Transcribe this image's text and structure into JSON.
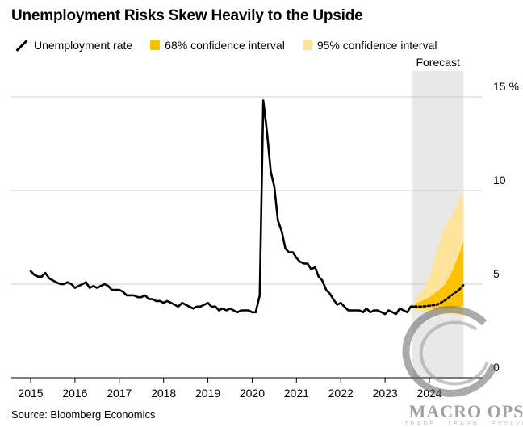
{
  "chart_data": {
    "type": "line",
    "title": "Unemployment Risks Skew Heavily to the Upside",
    "source": "Source: Bloomberg Economics",
    "xlabel": "",
    "ylabel": "",
    "xlim": [
      2014.95,
      2025.0
    ],
    "ylim": [
      0,
      15
    ],
    "grid": true,
    "y_ticks": [
      {
        "value": 0,
        "label": "0"
      },
      {
        "value": 5,
        "label": "5"
      },
      {
        "value": 10,
        "label": "10"
      },
      {
        "value": 15,
        "label": "15 %"
      }
    ],
    "x_ticks": [
      {
        "value": 2015,
        "label": "2015"
      },
      {
        "value": 2016,
        "label": "2016"
      },
      {
        "value": 2017,
        "label": "2017"
      },
      {
        "value": 2018,
        "label": "2018"
      },
      {
        "value": 2019,
        "label": "2019"
      },
      {
        "value": 2020,
        "label": "2020"
      },
      {
        "value": 2021,
        "label": "2021"
      },
      {
        "value": 2022,
        "label": "2022"
      },
      {
        "value": 2023,
        "label": "2023"
      },
      {
        "value": 2024,
        "label": "2024"
      }
    ],
    "forecast_region": {
      "label": "Forecast",
      "start": 2023.62,
      "end": 2024.77,
      "color": "#e8e8e8"
    },
    "colors": {
      "line": "#000000",
      "ci68": "#fcc200",
      "ci95": "#fde49a",
      "grid": "#cccccc",
      "axis": "#000000"
    },
    "legend": [
      {
        "name": "Unemployment rate",
        "kind": "line"
      },
      {
        "name": "68% confidence interval",
        "kind": "ci68"
      },
      {
        "name": "95% confidence interval",
        "kind": "ci95"
      }
    ],
    "series": [
      {
        "name": "Unemployment rate",
        "x": [
          2015.0,
          2015.08,
          2015.17,
          2015.25,
          2015.33,
          2015.42,
          2015.5,
          2015.58,
          2015.67,
          2015.75,
          2015.83,
          2015.92,
          2016.0,
          2016.08,
          2016.17,
          2016.25,
          2016.33,
          2016.42,
          2016.5,
          2016.58,
          2016.67,
          2016.75,
          2016.83,
          2016.92,
          2017.0,
          2017.08,
          2017.17,
          2017.25,
          2017.33,
          2017.42,
          2017.5,
          2017.58,
          2017.67,
          2017.75,
          2017.83,
          2017.92,
          2018.0,
          2018.08,
          2018.17,
          2018.25,
          2018.33,
          2018.42,
          2018.5,
          2018.58,
          2018.67,
          2018.75,
          2018.83,
          2018.92,
          2019.0,
          2019.08,
          2019.17,
          2019.25,
          2019.33,
          2019.42,
          2019.5,
          2019.58,
          2019.67,
          2019.75,
          2019.83,
          2019.92,
          2020.0,
          2020.08,
          2020.17,
          2020.25,
          2020.33,
          2020.42,
          2020.5,
          2020.58,
          2020.67,
          2020.75,
          2020.83,
          2020.92,
          2021.0,
          2021.08,
          2021.17,
          2021.25,
          2021.33,
          2021.42,
          2021.5,
          2021.58,
          2021.67,
          2021.75,
          2021.83,
          2021.92,
          2022.0,
          2022.08,
          2022.17,
          2022.25,
          2022.33,
          2022.42,
          2022.5,
          2022.58,
          2022.67,
          2022.75,
          2022.83,
          2022.92,
          2023.0,
          2023.08,
          2023.17,
          2023.25,
          2023.33,
          2023.42,
          2023.5,
          2023.58,
          2023.67
        ],
        "values": [
          5.7,
          5.5,
          5.4,
          5.4,
          5.6,
          5.3,
          5.2,
          5.1,
          5.0,
          5.0,
          5.1,
          5.0,
          4.8,
          4.9,
          5.0,
          5.1,
          4.8,
          4.9,
          4.8,
          4.9,
          5.0,
          4.9,
          4.7,
          4.7,
          4.7,
          4.6,
          4.4,
          4.4,
          4.4,
          4.3,
          4.3,
          4.4,
          4.2,
          4.2,
          4.1,
          4.1,
          4.0,
          4.1,
          4.0,
          3.9,
          3.8,
          4.0,
          3.9,
          3.8,
          3.7,
          3.8,
          3.8,
          3.9,
          4.0,
          3.8,
          3.8,
          3.6,
          3.7,
          3.6,
          3.7,
          3.6,
          3.5,
          3.6,
          3.6,
          3.6,
          3.5,
          3.5,
          4.4,
          14.8,
          13.2,
          11.0,
          10.2,
          8.4,
          7.8,
          6.9,
          6.7,
          6.7,
          6.4,
          6.2,
          6.1,
          6.1,
          5.8,
          5.9,
          5.4,
          5.2,
          4.7,
          4.5,
          4.2,
          3.9,
          4.0,
          3.8,
          3.6,
          3.6,
          3.6,
          3.6,
          3.5,
          3.7,
          3.5,
          3.6,
          3.6,
          3.5,
          3.4,
          3.6,
          3.5,
          3.4,
          3.7,
          3.6,
          3.5,
          3.8,
          3.8
        ]
      },
      {
        "name": "Forecast median",
        "x": [
          2023.67,
          2023.83,
          2024.0,
          2024.17,
          2024.33,
          2024.5,
          2024.67,
          2024.77
        ],
        "values": [
          3.8,
          3.8,
          3.85,
          3.9,
          4.1,
          4.4,
          4.7,
          4.95
        ]
      }
    ],
    "bands": [
      {
        "name": "95% confidence interval",
        "x": [
          2023.67,
          2023.83,
          2024.0,
          2024.17,
          2024.33,
          2024.5,
          2024.67,
          2024.77
        ],
        "lower": [
          3.6,
          3.55,
          3.5,
          3.45,
          3.4,
          3.4,
          3.35,
          3.3
        ],
        "upper": [
          4.2,
          4.6,
          5.4,
          6.8,
          8.0,
          8.6,
          9.4,
          10.0
        ]
      },
      {
        "name": "68% confidence interval",
        "x": [
          2023.67,
          2023.83,
          2024.0,
          2024.17,
          2024.33,
          2024.5,
          2024.67,
          2024.77
        ],
        "lower": [
          3.7,
          3.7,
          3.7,
          3.7,
          3.7,
          3.75,
          3.8,
          3.85
        ],
        "upper": [
          3.95,
          4.1,
          4.3,
          4.6,
          4.9,
          5.6,
          6.6,
          7.3
        ]
      }
    ]
  },
  "watermark": {
    "name": "MACRO OPS",
    "tagline": "TRADE · LEARN · EVOLVE"
  }
}
